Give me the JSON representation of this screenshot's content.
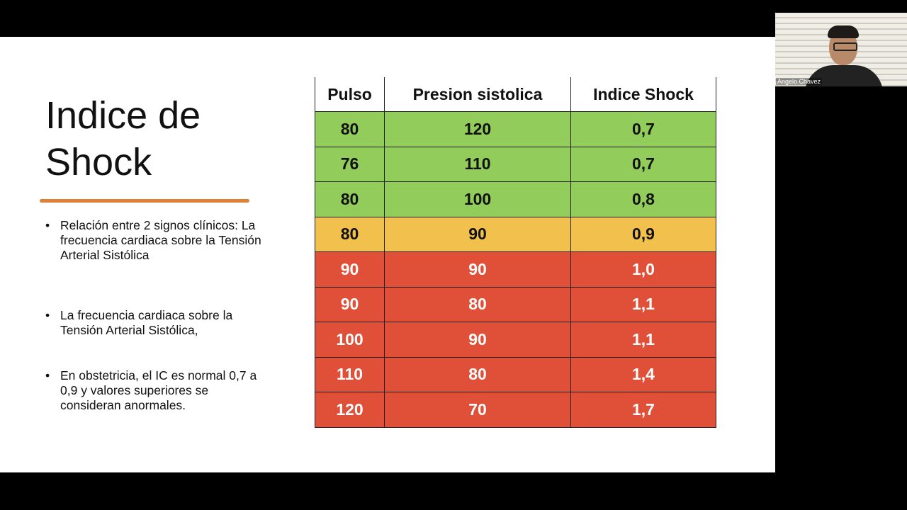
{
  "slide": {
    "title_line1": "Indice de",
    "title_line2": "Shock",
    "bullets": [
      "Relación entre 2 signos clínicos: La frecuencia cardiaca sobre la Tensión Arterial Sistólica",
      "La frecuencia cardiaca sobre la Tensión Arterial Sistólica,",
      "En obstetricia, el IC es normal 0,7 a 0,9 y valores superiores se consideran anormales."
    ],
    "bullet_char": "•",
    "accent_color": "#e0813a"
  },
  "table": {
    "headers": [
      "Pulso",
      "Presion sistolica",
      "Indice Shock"
    ],
    "rows": [
      {
        "status": "green",
        "cells": [
          "80",
          "120",
          "0,7"
        ]
      },
      {
        "status": "green",
        "cells": [
          "76",
          "110",
          "0,7"
        ]
      },
      {
        "status": "green",
        "cells": [
          "80",
          "100",
          "0,8"
        ]
      },
      {
        "status": "yellow",
        "cells": [
          "80",
          "90",
          "0,9"
        ]
      },
      {
        "status": "red",
        "cells": [
          "90",
          "90",
          "1,0"
        ]
      },
      {
        "status": "red",
        "cells": [
          "90",
          "80",
          "1,1"
        ]
      },
      {
        "status": "red",
        "cells": [
          "100",
          "90",
          "1,1"
        ]
      },
      {
        "status": "red",
        "cells": [
          "110",
          "80",
          "1,4"
        ]
      },
      {
        "status": "red",
        "cells": [
          "120",
          "70",
          "1,7"
        ]
      }
    ],
    "colors": {
      "green": "#92cd5c",
      "yellow": "#f2c04d",
      "red": "#e05038"
    }
  },
  "participant": {
    "name": "Angelo Chavez"
  }
}
